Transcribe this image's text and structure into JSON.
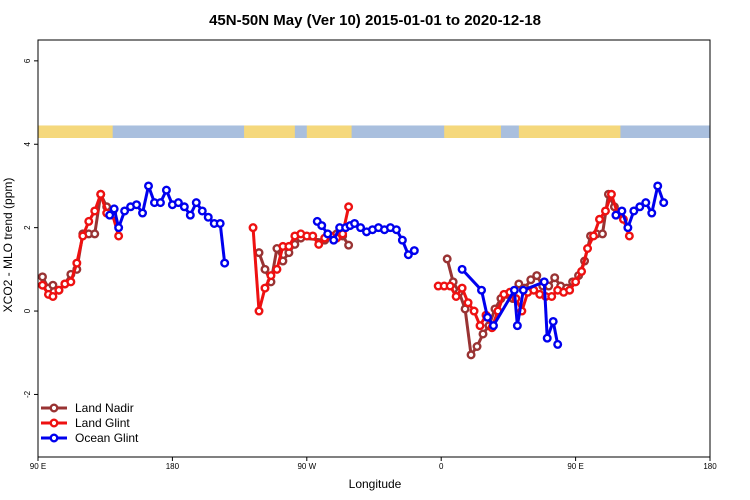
{
  "chart_data": {
    "type": "line",
    "title": "45N-50N May (Ver 10)   2015-01-01 to 2020-12-18",
    "xlabel": "Longitude",
    "ylabel": "XCO2 - MLO trend (ppm)",
    "x_ticks": [
      {
        "value": 90,
        "label": "90 E"
      },
      {
        "value": 180,
        "label": "180"
      },
      {
        "value": 270,
        "label": "90 W"
      },
      {
        "value": 360,
        "label": "0"
      },
      {
        "value": 450,
        "label": "90 E"
      },
      {
        "value": 540,
        "label": "180"
      }
    ],
    "y_ticks": [
      -2,
      0,
      2,
      4,
      6
    ],
    "xlim": [
      90,
      540
    ],
    "ylim": [
      -3.5,
      6.5
    ],
    "map_strip": {
      "ymin": 4.15,
      "ymax": 4.45,
      "land_color": "#f5d87c",
      "ocean_color": "#a9bfde"
    },
    "legend_position": "bottom-left",
    "series": [
      {
        "name": "Land Nadir",
        "color": "#993333",
        "points": [
          [
            93,
            0.82
          ],
          [
            97,
            0.55
          ],
          [
            100,
            0.62
          ],
          [
            104,
            0.5
          ],
          [
            108,
            0.65
          ],
          [
            112,
            0.88
          ],
          [
            116,
            1.0
          ],
          [
            120,
            1.85
          ],
          [
            124,
            1.85
          ],
          [
            128,
            1.85
          ],
          [
            132,
            2.8
          ],
          [
            136,
            2.5
          ],
          [
            140,
            2.35
          ],
          [
            238,
            1.4
          ],
          [
            242,
            1.0
          ],
          [
            246,
            0.7
          ],
          [
            250,
            1.5
          ],
          [
            254,
            1.2
          ],
          [
            258,
            1.4
          ],
          [
            262,
            1.6
          ],
          [
            266,
            1.75
          ],
          [
            282,
            1.7
          ],
          [
            286,
            1.8
          ],
          [
            290,
            1.85
          ],
          [
            294,
            1.8
          ],
          [
            298,
            1.58
          ],
          [
            364,
            1.25
          ],
          [
            368,
            0.7
          ],
          [
            372,
            0.45
          ],
          [
            376,
            0.05
          ],
          [
            380,
            -1.05
          ],
          [
            384,
            -0.85
          ],
          [
            388,
            -0.55
          ],
          [
            392,
            -0.35
          ],
          [
            396,
            0.05
          ],
          [
            400,
            0.3
          ],
          [
            404,
            0.4
          ],
          [
            408,
            0.3
          ],
          [
            412,
            0.65
          ],
          [
            416,
            0.55
          ],
          [
            420,
            0.75
          ],
          [
            424,
            0.85
          ],
          [
            428,
            0.6
          ],
          [
            432,
            0.6
          ],
          [
            436,
            0.8
          ],
          [
            440,
            0.6
          ],
          [
            444,
            0.55
          ],
          [
            448,
            0.7
          ],
          [
            452,
            0.85
          ],
          [
            456,
            1.2
          ],
          [
            460,
            1.8
          ],
          [
            464,
            1.85
          ],
          [
            468,
            1.85
          ],
          [
            472,
            2.8
          ],
          [
            476,
            2.5
          ],
          [
            480,
            2.35
          ]
        ]
      },
      {
        "name": "Land Glint",
        "color": "#ee1111",
        "points": [
          [
            93,
            0.62
          ],
          [
            97,
            0.4
          ],
          [
            100,
            0.35
          ],
          [
            104,
            0.5
          ],
          [
            108,
            0.65
          ],
          [
            112,
            0.7
          ],
          [
            116,
            1.15
          ],
          [
            120,
            1.8
          ],
          [
            124,
            2.15
          ],
          [
            128,
            2.4
          ],
          [
            132,
            2.8
          ],
          [
            136,
            2.35
          ],
          [
            140,
            2.3
          ],
          [
            144,
            1.8
          ],
          [
            234,
            2.0
          ],
          [
            238,
            0.0
          ],
          [
            242,
            0.55
          ],
          [
            246,
            0.85
          ],
          [
            250,
            1.0
          ],
          [
            254,
            1.55
          ],
          [
            258,
            1.55
          ],
          [
            262,
            1.8
          ],
          [
            266,
            1.85
          ],
          [
            270,
            1.8
          ],
          [
            274,
            1.8
          ],
          [
            278,
            1.6
          ],
          [
            282,
            1.75
          ],
          [
            286,
            1.8
          ],
          [
            290,
            1.75
          ],
          [
            294,
            1.85
          ],
          [
            298,
            2.5
          ],
          [
            358,
            0.6
          ],
          [
            362,
            0.6
          ],
          [
            366,
            0.6
          ],
          [
            370,
            0.35
          ],
          [
            374,
            0.55
          ],
          [
            378,
            0.2
          ],
          [
            382,
            0.0
          ],
          [
            386,
            -0.35
          ],
          [
            390,
            -0.1
          ],
          [
            394,
            -0.4
          ],
          [
            398,
            0.0
          ],
          [
            402,
            0.4
          ],
          [
            406,
            0.45
          ],
          [
            410,
            0.3
          ],
          [
            414,
            0.0
          ],
          [
            418,
            0.45
          ],
          [
            422,
            0.5
          ],
          [
            426,
            0.4
          ],
          [
            430,
            0.35
          ],
          [
            434,
            0.35
          ],
          [
            438,
            0.5
          ],
          [
            442,
            0.45
          ],
          [
            446,
            0.5
          ],
          [
            450,
            0.7
          ],
          [
            454,
            0.95
          ],
          [
            458,
            1.5
          ],
          [
            462,
            1.8
          ],
          [
            466,
            2.2
          ],
          [
            470,
            2.4
          ],
          [
            474,
            2.8
          ],
          [
            478,
            2.35
          ],
          [
            482,
            2.2
          ],
          [
            486,
            1.8
          ]
        ]
      },
      {
        "name": "Ocean Glint",
        "color": "#0000ee",
        "points": [
          [
            138,
            2.3
          ],
          [
            141,
            2.45
          ],
          [
            144,
            2.0
          ],
          [
            148,
            2.4
          ],
          [
            152,
            2.5
          ],
          [
            156,
            2.55
          ],
          [
            160,
            2.35
          ],
          [
            164,
            3.0
          ],
          [
            168,
            2.6
          ],
          [
            172,
            2.6
          ],
          [
            176,
            2.9
          ],
          [
            180,
            2.55
          ],
          [
            184,
            2.6
          ],
          [
            188,
            2.5
          ],
          [
            192,
            2.3
          ],
          [
            196,
            2.6
          ],
          [
            200,
            2.4
          ],
          [
            204,
            2.25
          ],
          [
            208,
            2.1
          ],
          [
            212,
            2.1
          ],
          [
            215,
            1.15
          ],
          [
            277,
            2.15
          ],
          [
            280,
            2.05
          ],
          [
            284,
            1.85
          ],
          [
            288,
            1.7
          ],
          [
            292,
            2.0
          ],
          [
            296,
            2.0
          ],
          [
            299,
            2.05
          ],
          [
            302,
            2.1
          ],
          [
            306,
            2.0
          ],
          [
            310,
            1.9
          ],
          [
            314,
            1.95
          ],
          [
            318,
            2.0
          ],
          [
            322,
            1.95
          ],
          [
            326,
            2.0
          ],
          [
            330,
            1.95
          ],
          [
            334,
            1.7
          ],
          [
            338,
            1.35
          ],
          [
            342,
            1.45
          ],
          [
            374,
            1.0
          ],
          [
            387,
            0.5
          ],
          [
            391,
            -0.15
          ],
          [
            395,
            -0.35
          ],
          [
            409,
            0.5
          ],
          [
            411,
            -0.35
          ],
          [
            415,
            0.5
          ],
          [
            429,
            0.7
          ],
          [
            431,
            -0.65
          ],
          [
            435,
            -0.25
          ],
          [
            438,
            -0.8
          ],
          [
            477,
            2.3
          ],
          [
            481,
            2.4
          ],
          [
            485,
            2.0
          ],
          [
            489,
            2.4
          ],
          [
            493,
            2.5
          ],
          [
            497,
            2.6
          ],
          [
            501,
            2.35
          ],
          [
            505,
            3.0
          ],
          [
            509,
            2.6
          ]
        ]
      }
    ]
  }
}
